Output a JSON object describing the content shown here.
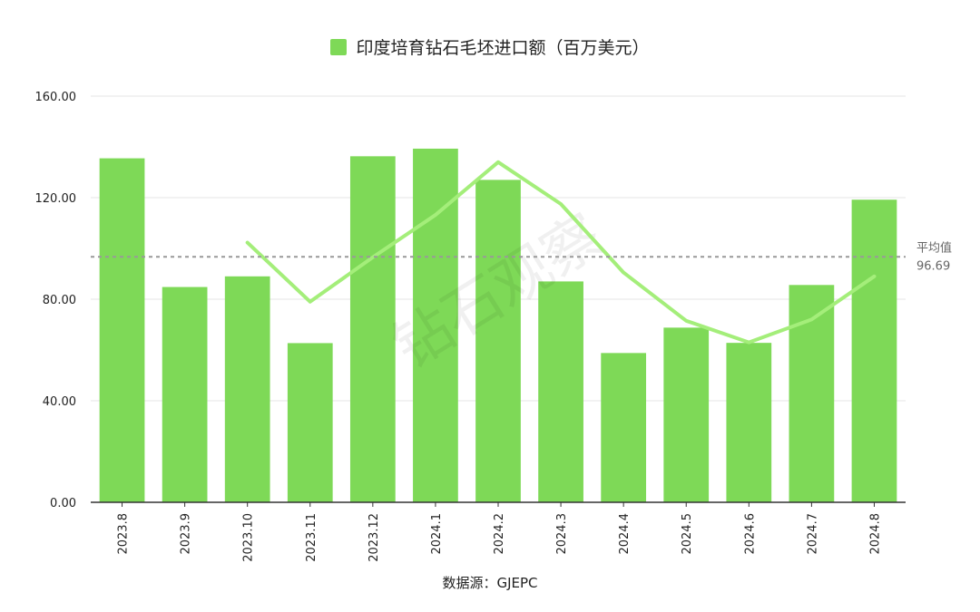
{
  "chart_data": {
    "type": "bar",
    "legend": "印度培育钻石毛坯进口额（百万美元）",
    "legend_position": "top-center",
    "categories": [
      "2023.8",
      "2023.9",
      "2023.10",
      "2023.11",
      "2023.12",
      "2024.1",
      "2024.2",
      "2024.3",
      "2024.4",
      "2024.5",
      "2024.6",
      "2024.7",
      "2024.8"
    ],
    "values": [
      135.5,
      84.8,
      89.0,
      62.7,
      136.3,
      139.3,
      127.0,
      87.0,
      58.8,
      68.8,
      62.8,
      85.6,
      119.2
    ],
    "trend": {
      "values": [
        null,
        null,
        102.3,
        79.0,
        96.5,
        113.2,
        134.0,
        117.5,
        90.5,
        71.5,
        63.0,
        72.0,
        89.0
      ]
    },
    "average": {
      "label": "平均值",
      "value": 96.69,
      "value_text": "96.69"
    },
    "yticks": [
      "0.00",
      "40.00",
      "80.00",
      "120.00",
      "160.00"
    ],
    "ylim": [
      0,
      160
    ],
    "grid": true,
    "source": "数据源：GJEPC",
    "watermark": "钻石观察",
    "colors": {
      "bar": "#7ed957",
      "trend": "#a4ee7a",
      "average_line": "#999999",
      "grid": "#e4e4e4",
      "axis": "#333333"
    }
  }
}
